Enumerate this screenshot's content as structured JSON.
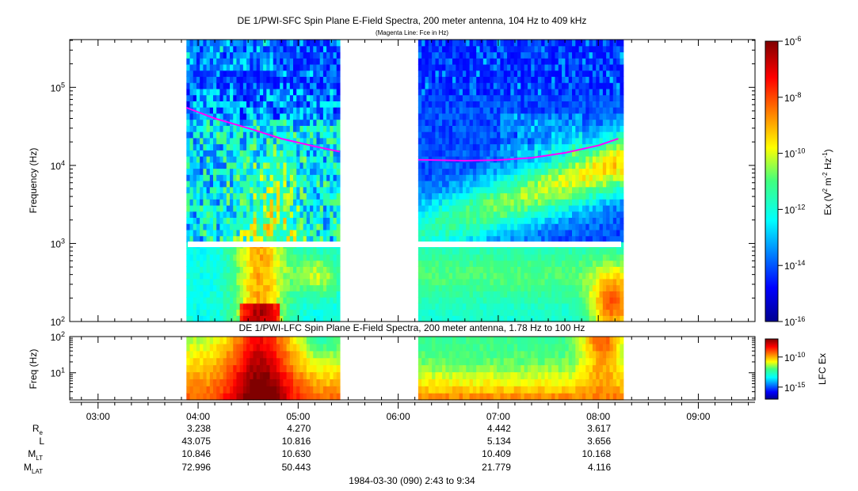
{
  "chart_data": [
    {
      "type": "heatmap",
      "title": "DE 1/PWI-SFC  Spin Plane E-Field Spectra, 200 meter antenna, 104 Hz to 409 kHz",
      "subtitle": "(Magenta Line: Fce in Hz)",
      "ylabel": "Frequency (Hz)",
      "yscale": "log",
      "ylim": [
        100,
        409000
      ],
      "y_tick_values": [
        100,
        1000,
        10000,
        100000
      ],
      "y_tick_labels": [
        {
          "base": "10",
          "exp": "2"
        },
        {
          "base": "10",
          "exp": "3"
        },
        {
          "base": "10",
          "exp": "4"
        },
        {
          "base": "10",
          "exp": "5"
        }
      ],
      "colorbar": {
        "label": "Ex (V² m⁻² Hz⁻¹)",
        "label_parts": {
          "prefix": "Ex (V",
          "sup1": "2",
          "mid": " m",
          "sup2": "-2",
          "mid2": " Hz",
          "sup3": "-1",
          "suffix": ")"
        },
        "scale": "log",
        "range": [
          1e-16,
          1e-06
        ],
        "tick_values": [
          -16,
          -14,
          -12,
          -10,
          -8,
          -6
        ],
        "tick_labels": [
          {
            "base": "10",
            "exp": "-16"
          },
          {
            "base": "10",
            "exp": "-14"
          },
          {
            "base": "10",
            "exp": "-12"
          },
          {
            "base": "10",
            "exp": "-10"
          },
          {
            "base": "10",
            "exp": "-8"
          },
          {
            "base": "10",
            "exp": "-6"
          }
        ]
      },
      "data_intervals": [
        [
          "03:53",
          "05:25"
        ],
        [
          "06:12",
          "08:15"
        ]
      ],
      "fce_line": [
        {
          "t": "03:53",
          "f": 55000
        },
        {
          "t": "04:10",
          "f": 40000
        },
        {
          "t": "04:30",
          "f": 30000
        },
        {
          "t": "04:50",
          "f": 22000
        },
        {
          "t": "05:10",
          "f": 17500
        },
        {
          "t": "05:25",
          "f": 15000
        },
        {
          "t": "06:12",
          "f": 11800
        },
        {
          "t": "06:40",
          "f": 11500
        },
        {
          "t": "07:00",
          "f": 11700
        },
        {
          "t": "07:20",
          "f": 12500
        },
        {
          "t": "07:40",
          "f": 14500
        },
        {
          "t": "08:00",
          "f": 18000
        },
        {
          "t": "08:12",
          "f": 22000
        }
      ]
    },
    {
      "type": "heatmap",
      "title": "DE 1/PWI-LFC  Spin Plane E-Field Spectra, 200 meter antenna, 1.78 Hz to 100 Hz",
      "ylabel": "Freq (Hz)",
      "yscale": "log",
      "ylim": [
        1.78,
        100
      ],
      "y_tick_values": [
        10,
        100
      ],
      "y_tick_labels": [
        {
          "base": "10",
          "exp": "1"
        },
        {
          "base": "10",
          "exp": "2"
        }
      ],
      "colorbar": {
        "label": "LFC Ex",
        "scale": "log",
        "range": [
          1e-17,
          1e-07
        ],
        "tick_values": [
          -15,
          -10
        ],
        "tick_labels": [
          {
            "base": "10",
            "exp": "-15"
          },
          {
            "base": "10",
            "exp": "-10"
          }
        ]
      },
      "data_intervals": [
        [
          "03:53",
          "05:25"
        ],
        [
          "06:12",
          "08:15"
        ]
      ]
    }
  ],
  "time_axis": {
    "range": [
      "02:43",
      "09:34"
    ],
    "tick_labels": [
      "03:00",
      "04:00",
      "05:00",
      "06:00",
      "07:00",
      "08:00",
      "09:00"
    ]
  },
  "ephemeris": {
    "labels": [
      {
        "base": "R",
        "sub": "e"
      },
      {
        "base": "L",
        "sub": ""
      },
      {
        "base": "M",
        "sub": "LT"
      },
      {
        "base": "M",
        "sub": "LAT"
      }
    ],
    "columns": [
      {
        "time": "04:00",
        "values": [
          "3.238",
          "43.075",
          "10.846",
          "72.996"
        ]
      },
      {
        "time": "05:00",
        "values": [
          "4.270",
          "10.816",
          "10.630",
          "50.443"
        ]
      },
      {
        "time": "07:00",
        "values": [
          "4.442",
          "5.134",
          "10.409",
          "21.779"
        ]
      },
      {
        "time": "08:00",
        "values": [
          "3.617",
          "3.656",
          "10.168",
          "4.116"
        ]
      }
    ]
  },
  "footer": "1984-03-30 (090) 2:43 to 9:34"
}
